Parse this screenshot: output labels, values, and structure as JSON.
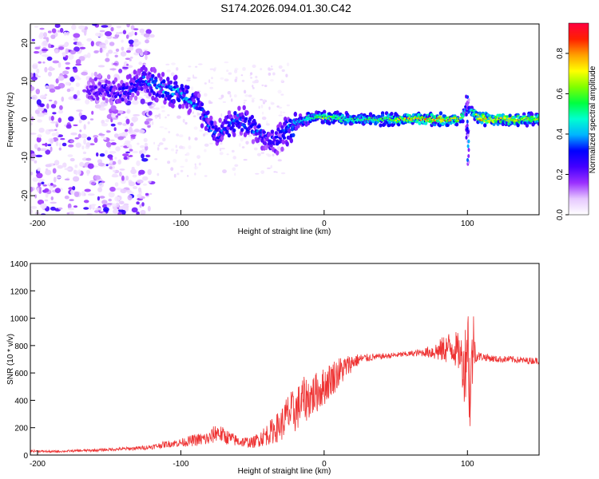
{
  "title": "S174.2026.094.01.30.C42",
  "chart_data": [
    {
      "type": "heatmap",
      "name": "spectrogram",
      "xlabel": "Height of straight line (km)",
      "ylabel": "Frequency (Hz)",
      "xlim": [
        -205,
        150
      ],
      "ylim": [
        -25,
        25
      ],
      "xticks": [
        -200,
        -100,
        0,
        100
      ],
      "yticks": [
        -20,
        -10,
        0,
        10,
        20
      ],
      "colorbar": {
        "label": "Normalized spectral amplitude",
        "range": [
          0.0,
          0.95
        ],
        "ticks": [
          0.0,
          0.2,
          0.4,
          0.6,
          0.8
        ],
        "tick_labels": [
          "0.0",
          "0.2",
          "0.4",
          "0.6",
          "0.8"
        ],
        "colormap": [
          "#ffffff",
          "#e6c8ff",
          "#9b30ff",
          "#4400ff",
          "#0000ff",
          "#00b4ff",
          "#00ffd0",
          "#00ff40",
          "#80ff00",
          "#ffff00",
          "#ffa000",
          "#ff2000",
          "#ff0040"
        ]
      },
      "ridge": [
        {
          "x": -160,
          "f": 8,
          "amp": 0.25
        },
        {
          "x": -140,
          "f": 7,
          "amp": 0.3
        },
        {
          "x": -125,
          "f": 10,
          "amp": 0.35
        },
        {
          "x": -110,
          "f": 8,
          "amp": 0.4
        },
        {
          "x": -95,
          "f": 6,
          "amp": 0.4
        },
        {
          "x": -85,
          "f": 2,
          "amp": 0.35
        },
        {
          "x": -75,
          "f": -4,
          "amp": 0.35
        },
        {
          "x": -60,
          "f": 0,
          "amp": 0.35
        },
        {
          "x": -45,
          "f": -3,
          "amp": 0.35
        },
        {
          "x": -35,
          "f": -6,
          "amp": 0.3
        },
        {
          "x": -20,
          "f": -1,
          "amp": 0.45
        },
        {
          "x": -10,
          "f": 0.5,
          "amp": 0.55
        },
        {
          "x": 0,
          "f": 0.5,
          "amp": 0.65
        },
        {
          "x": 20,
          "f": 0,
          "amp": 0.55
        },
        {
          "x": 40,
          "f": 0,
          "amp": 0.6
        },
        {
          "x": 60,
          "f": 0,
          "amp": 0.75
        },
        {
          "x": 80,
          "f": 0,
          "amp": 0.8
        },
        {
          "x": 95,
          "f": 0,
          "amp": 0.7
        },
        {
          "x": 100,
          "f": 3,
          "amp": 0.4
        },
        {
          "x": 110,
          "f": 0,
          "amp": 0.85
        },
        {
          "x": 130,
          "f": 0,
          "amp": 0.75
        },
        {
          "x": 150,
          "f": 0,
          "amp": 0.65
        }
      ]
    },
    {
      "type": "line",
      "name": "snr",
      "xlabel": "Height of straight line (km)",
      "ylabel": "SNR (10 * v/v)",
      "xlim": [
        -205,
        150
      ],
      "ylim": [
        0,
        1400
      ],
      "xticks": [
        -200,
        -100,
        0,
        100
      ],
      "yticks": [
        0,
        200,
        400,
        600,
        800,
        1000,
        1200,
        1400
      ],
      "color": "#ee3333",
      "series": [
        {
          "name": "SNR",
          "x": [
            -205,
            -190,
            -175,
            -160,
            -150,
            -140,
            -130,
            -120,
            -110,
            -100,
            -90,
            -80,
            -75,
            -70,
            -60,
            -50,
            -40,
            -30,
            -25,
            -20,
            -15,
            -10,
            -5,
            0,
            5,
            10,
            15,
            20,
            25,
            30,
            40,
            50,
            60,
            70,
            80,
            85,
            90,
            95,
            98,
            100,
            102,
            104,
            106,
            110,
            120,
            130,
            140,
            150
          ],
          "values": [
            30,
            25,
            30,
            35,
            40,
            45,
            50,
            60,
            80,
            90,
            110,
            120,
            170,
            140,
            100,
            90,
            150,
            220,
            300,
            320,
            400,
            420,
            460,
            500,
            560,
            600,
            640,
            680,
            700,
            710,
            720,
            730,
            740,
            750,
            760,
            780,
            790,
            740,
            620,
            900,
            400,
            850,
            720,
            720,
            700,
            700,
            690,
            690
          ],
          "noise": [
            8,
            8,
            8,
            10,
            10,
            12,
            14,
            18,
            25,
            30,
            45,
            55,
            70,
            60,
            40,
            40,
            80,
            120,
            160,
            160,
            170,
            160,
            150,
            140,
            130,
            120,
            90,
            60,
            40,
            30,
            20,
            20,
            20,
            30,
            80,
            110,
            130,
            140,
            250,
            400,
            350,
            250,
            40,
            30,
            25,
            25,
            25,
            25
          ]
        }
      ]
    }
  ]
}
